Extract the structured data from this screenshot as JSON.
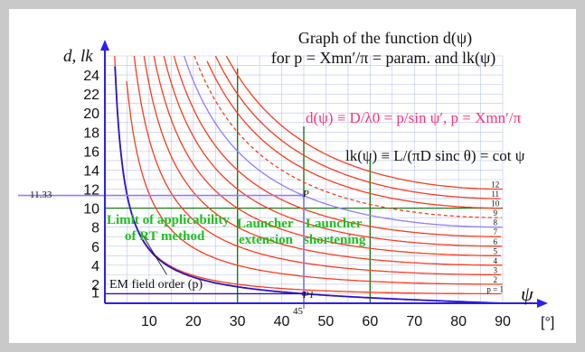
{
  "chart_data": {
    "type": "line",
    "title_line1": "Graph of the function d(ψ)",
    "title_line2": "for p = Xmn′/π = param. and lk(ψ)",
    "xlabel": "ψ",
    "xunit": "[°]",
    "ylabel": "d, lk",
    "xlim": [
      0,
      90
    ],
    "ylim": [
      0,
      26
    ],
    "x_ticks": [
      10,
      20,
      30,
      40,
      50,
      60,
      70,
      80,
      90
    ],
    "y_ticks": [
      1,
      2,
      4,
      6,
      8,
      10,
      12,
      14,
      16,
      18,
      20,
      22,
      24
    ],
    "x_marker": {
      "label": "45",
      "value": 45
    },
    "y_marker": {
      "label": "11.33",
      "value": 11.33
    },
    "formula_d": "d(ψ) ≡ D/λ0 = p/sin ψ′,  p = Xmn′/π",
    "formula_lk": "lk(ψ) ≡ L/(πD sinc θ) = cot ψ",
    "series": [
      {
        "name": "p = 1",
        "p": 1
      },
      {
        "name": "2",
        "p": 2
      },
      {
        "name": "3",
        "p": 3
      },
      {
        "name": "4",
        "p": 4
      },
      {
        "name": "5",
        "p": 5
      },
      {
        "name": "6",
        "p": 6
      },
      {
        "name": "7",
        "p": 7
      },
      {
        "name": "8",
        "p": 8
      },
      {
        "name": "9",
        "p": 9
      },
      {
        "name": "10",
        "p": 10
      },
      {
        "name": "11",
        "p": 11
      },
      {
        "name": "12",
        "p": 12
      }
    ],
    "annotations": {
      "limit": [
        "Limit of applicability",
        "of RT method"
      ],
      "extension": [
        "Launcher",
        "extension"
      ],
      "shortening": [
        "Launcher",
        "shortening"
      ],
      "em_order": "EM field order (p)",
      "point_p": "P",
      "point_p1": "P1"
    },
    "vertical_lines": [
      30,
      45,
      60
    ],
    "horizontal_line": 10,
    "grid": true,
    "colors": {
      "d_curves": "#ff3b1a",
      "lk_curve": "#2a12c8",
      "marker_lines": "#8f7cff",
      "green": "#1a7a1a",
      "annotation": "#1fbf1f",
      "formula": "#ff3377",
      "axis": "#2b1ff0",
      "grid": "#b8c4ea"
    }
  }
}
